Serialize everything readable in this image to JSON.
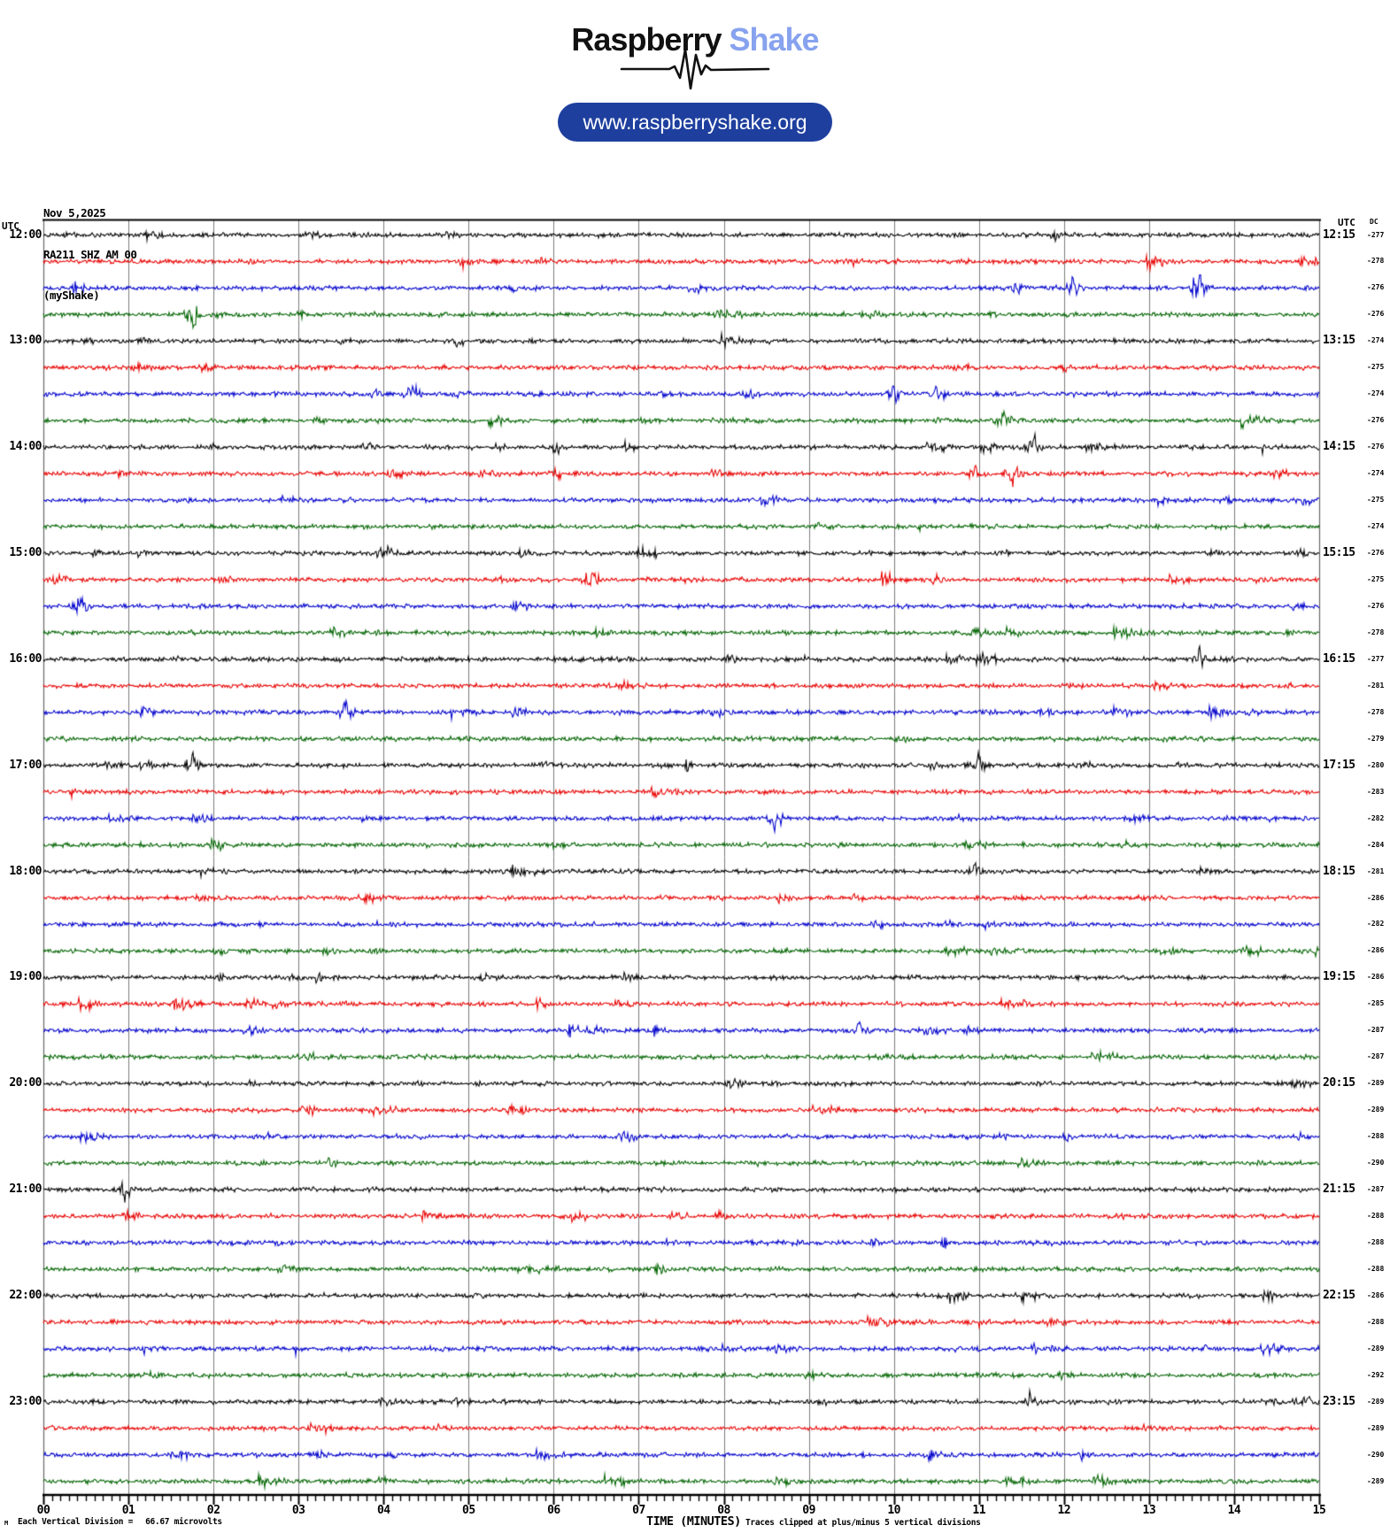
{
  "logo": {
    "brand_black": "Raspberry",
    "brand_blue": "Shake",
    "brand_blue_color": "#87a2ee",
    "url_label": "www.raspberryshake.org",
    "pill_color": "#1e3f9e"
  },
  "header": {
    "date": "Nov 5,2025",
    "station": "RA211 SHZ AM 00",
    "network": "(myShake)"
  },
  "plot": {
    "left_utc": "UTC",
    "right_utc": "UTC",
    "dc_header": "DC"
  },
  "footer": {
    "corner_mark": "M",
    "division_label": "Each Vertical Division =",
    "division_value": "66.67 microvolts",
    "x_title": "TIME (MINUTES)",
    "clip_note": "Traces clipped at plus/minus 5 vertical divisions"
  },
  "chart_data": {
    "type": "line",
    "subtype": "helicorder",
    "xlabel": "TIME (MINUTES)",
    "x_range_minutes": [
      0,
      15
    ],
    "minutes_per_line": 15,
    "x_tick_labels": [
      "00",
      "01",
      "02",
      "03",
      "04",
      "05",
      "06",
      "07",
      "08",
      "09",
      "10",
      "11",
      "12",
      "13",
      "14",
      "15"
    ],
    "minor_ticks_per_minute": 10,
    "grid": "vertical-only",
    "grid_color": "#7b7b7b",
    "trace_colors": {
      "black": "#000000",
      "red": "#e80000",
      "blue": "#0000cc",
      "green": "#006400"
    },
    "clip_divisions": 5,
    "microvolts_per_division": 66.67,
    "rows": [
      {
        "t": "12:00",
        "color": "black",
        "dc": -277,
        "left": "12:00",
        "right": "12:15"
      },
      {
        "t": "12:15",
        "color": "red",
        "dc": -278,
        "left": null,
        "right": null
      },
      {
        "t": "12:30",
        "color": "blue",
        "dc": -276,
        "left": null,
        "right": null
      },
      {
        "t": "12:45",
        "color": "green",
        "dc": -276,
        "left": null,
        "right": null
      },
      {
        "t": "13:00",
        "color": "black",
        "dc": -274,
        "left": "13:00",
        "right": "13:15"
      },
      {
        "t": "13:15",
        "color": "red",
        "dc": -275,
        "left": null,
        "right": null
      },
      {
        "t": "13:30",
        "color": "blue",
        "dc": -274,
        "left": null,
        "right": null
      },
      {
        "t": "13:45",
        "color": "green",
        "dc": -276,
        "left": null,
        "right": null
      },
      {
        "t": "14:00",
        "color": "black",
        "dc": -276,
        "left": "14:00",
        "right": "14:15"
      },
      {
        "t": "14:15",
        "color": "red",
        "dc": -274,
        "left": null,
        "right": null
      },
      {
        "t": "14:30",
        "color": "blue",
        "dc": -275,
        "left": null,
        "right": null
      },
      {
        "t": "14:45",
        "color": "green",
        "dc": -274,
        "left": null,
        "right": null
      },
      {
        "t": "15:00",
        "color": "black",
        "dc": -276,
        "left": "15:00",
        "right": "15:15"
      },
      {
        "t": "15:15",
        "color": "red",
        "dc": -275,
        "left": null,
        "right": null
      },
      {
        "t": "15:30",
        "color": "blue",
        "dc": -276,
        "left": null,
        "right": null
      },
      {
        "t": "15:45",
        "color": "green",
        "dc": -278,
        "left": null,
        "right": null
      },
      {
        "t": "16:00",
        "color": "black",
        "dc": -277,
        "left": "16:00",
        "right": "16:15"
      },
      {
        "t": "16:15",
        "color": "red",
        "dc": -281,
        "left": null,
        "right": null
      },
      {
        "t": "16:30",
        "color": "blue",
        "dc": -278,
        "left": null,
        "right": null
      },
      {
        "t": "16:45",
        "color": "green",
        "dc": -279,
        "left": null,
        "right": null
      },
      {
        "t": "17:00",
        "color": "black",
        "dc": -280,
        "left": "17:00",
        "right": "17:15"
      },
      {
        "t": "17:15",
        "color": "red",
        "dc": -283,
        "left": null,
        "right": null
      },
      {
        "t": "17:30",
        "color": "blue",
        "dc": -282,
        "left": null,
        "right": null
      },
      {
        "t": "17:45",
        "color": "green",
        "dc": -284,
        "left": null,
        "right": null
      },
      {
        "t": "18:00",
        "color": "black",
        "dc": -281,
        "left": "18:00",
        "right": "18:15"
      },
      {
        "t": "18:15",
        "color": "red",
        "dc": -286,
        "left": null,
        "right": null
      },
      {
        "t": "18:30",
        "color": "blue",
        "dc": -282,
        "left": null,
        "right": null
      },
      {
        "t": "18:45",
        "color": "green",
        "dc": -286,
        "left": null,
        "right": null
      },
      {
        "t": "19:00",
        "color": "black",
        "dc": -286,
        "left": "19:00",
        "right": "19:15"
      },
      {
        "t": "19:15",
        "color": "red",
        "dc": -285,
        "left": null,
        "right": null
      },
      {
        "t": "19:30",
        "color": "blue",
        "dc": -287,
        "left": null,
        "right": null
      },
      {
        "t": "19:45",
        "color": "green",
        "dc": -287,
        "left": null,
        "right": null
      },
      {
        "t": "20:00",
        "color": "black",
        "dc": -289,
        "left": "20:00",
        "right": "20:15"
      },
      {
        "t": "20:15",
        "color": "red",
        "dc": -289,
        "left": null,
        "right": null
      },
      {
        "t": "20:30",
        "color": "blue",
        "dc": -288,
        "left": null,
        "right": null
      },
      {
        "t": "20:45",
        "color": "green",
        "dc": -290,
        "left": null,
        "right": null
      },
      {
        "t": "21:00",
        "color": "black",
        "dc": -287,
        "left": "21:00",
        "right": "21:15"
      },
      {
        "t": "21:15",
        "color": "red",
        "dc": -288,
        "left": null,
        "right": null
      },
      {
        "t": "21:30",
        "color": "blue",
        "dc": -288,
        "left": null,
        "right": null
      },
      {
        "t": "21:45",
        "color": "green",
        "dc": -288,
        "left": null,
        "right": null
      },
      {
        "t": "22:00",
        "color": "black",
        "dc": -286,
        "left": "22:00",
        "right": "22:15"
      },
      {
        "t": "22:15",
        "color": "red",
        "dc": -288,
        "left": null,
        "right": null
      },
      {
        "t": "22:30",
        "color": "blue",
        "dc": -289,
        "left": null,
        "right": null
      },
      {
        "t": "22:45",
        "color": "green",
        "dc": -292,
        "left": null,
        "right": null
      },
      {
        "t": "23:00",
        "color": "black",
        "dc": -289,
        "left": "23:00",
        "right": "23:15"
      },
      {
        "t": "23:15",
        "color": "red",
        "dc": -289,
        "left": null,
        "right": null
      },
      {
        "t": "23:30",
        "color": "blue",
        "dc": -290,
        "left": null,
        "right": null
      },
      {
        "t": "23:45",
        "color": "green",
        "dc": -289,
        "left": null,
        "right": null
      }
    ],
    "events": [
      {
        "row": 2,
        "minute": 12.1,
        "amp": 11
      },
      {
        "row": 2,
        "minute": 13.6,
        "amp": 12
      },
      {
        "row": 3,
        "minute": 1.76,
        "amp": -12
      },
      {
        "row": 6,
        "minute": 4.35,
        "amp": 10
      },
      {
        "row": 6,
        "minute": 10.0,
        "amp": 9
      },
      {
        "row": 6,
        "minute": 10.5,
        "amp": 9
      },
      {
        "row": 7,
        "minute": 11.3,
        "amp": 8
      },
      {
        "row": 8,
        "minute": 11.1,
        "amp": -10
      },
      {
        "row": 8,
        "minute": 11.65,
        "amp": 15
      },
      {
        "row": 9,
        "minute": 10.95,
        "amp": 8
      },
      {
        "row": 9,
        "minute": 11.4,
        "amp": -12
      },
      {
        "row": 12,
        "minute": 4.05,
        "amp": 8
      },
      {
        "row": 13,
        "minute": 6.45,
        "amp": 12
      },
      {
        "row": 14,
        "minute": 0.45,
        "amp": 10
      },
      {
        "row": 16,
        "minute": 13.6,
        "amp": 12
      },
      {
        "row": 18,
        "minute": 3.55,
        "amp": 10
      },
      {
        "row": 20,
        "minute": 1.75,
        "amp": 11
      },
      {
        "row": 20,
        "minute": 11.0,
        "amp": 9
      },
      {
        "row": 22,
        "minute": 8.6,
        "amp": -9
      },
      {
        "row": 24,
        "minute": 10.95,
        "amp": 8
      },
      {
        "row": 30,
        "minute": 9.6,
        "amp": 8
      },
      {
        "row": 36,
        "minute": 0.95,
        "amp": -11
      },
      {
        "row": 44,
        "minute": 11.6,
        "amp": 7
      }
    ]
  }
}
